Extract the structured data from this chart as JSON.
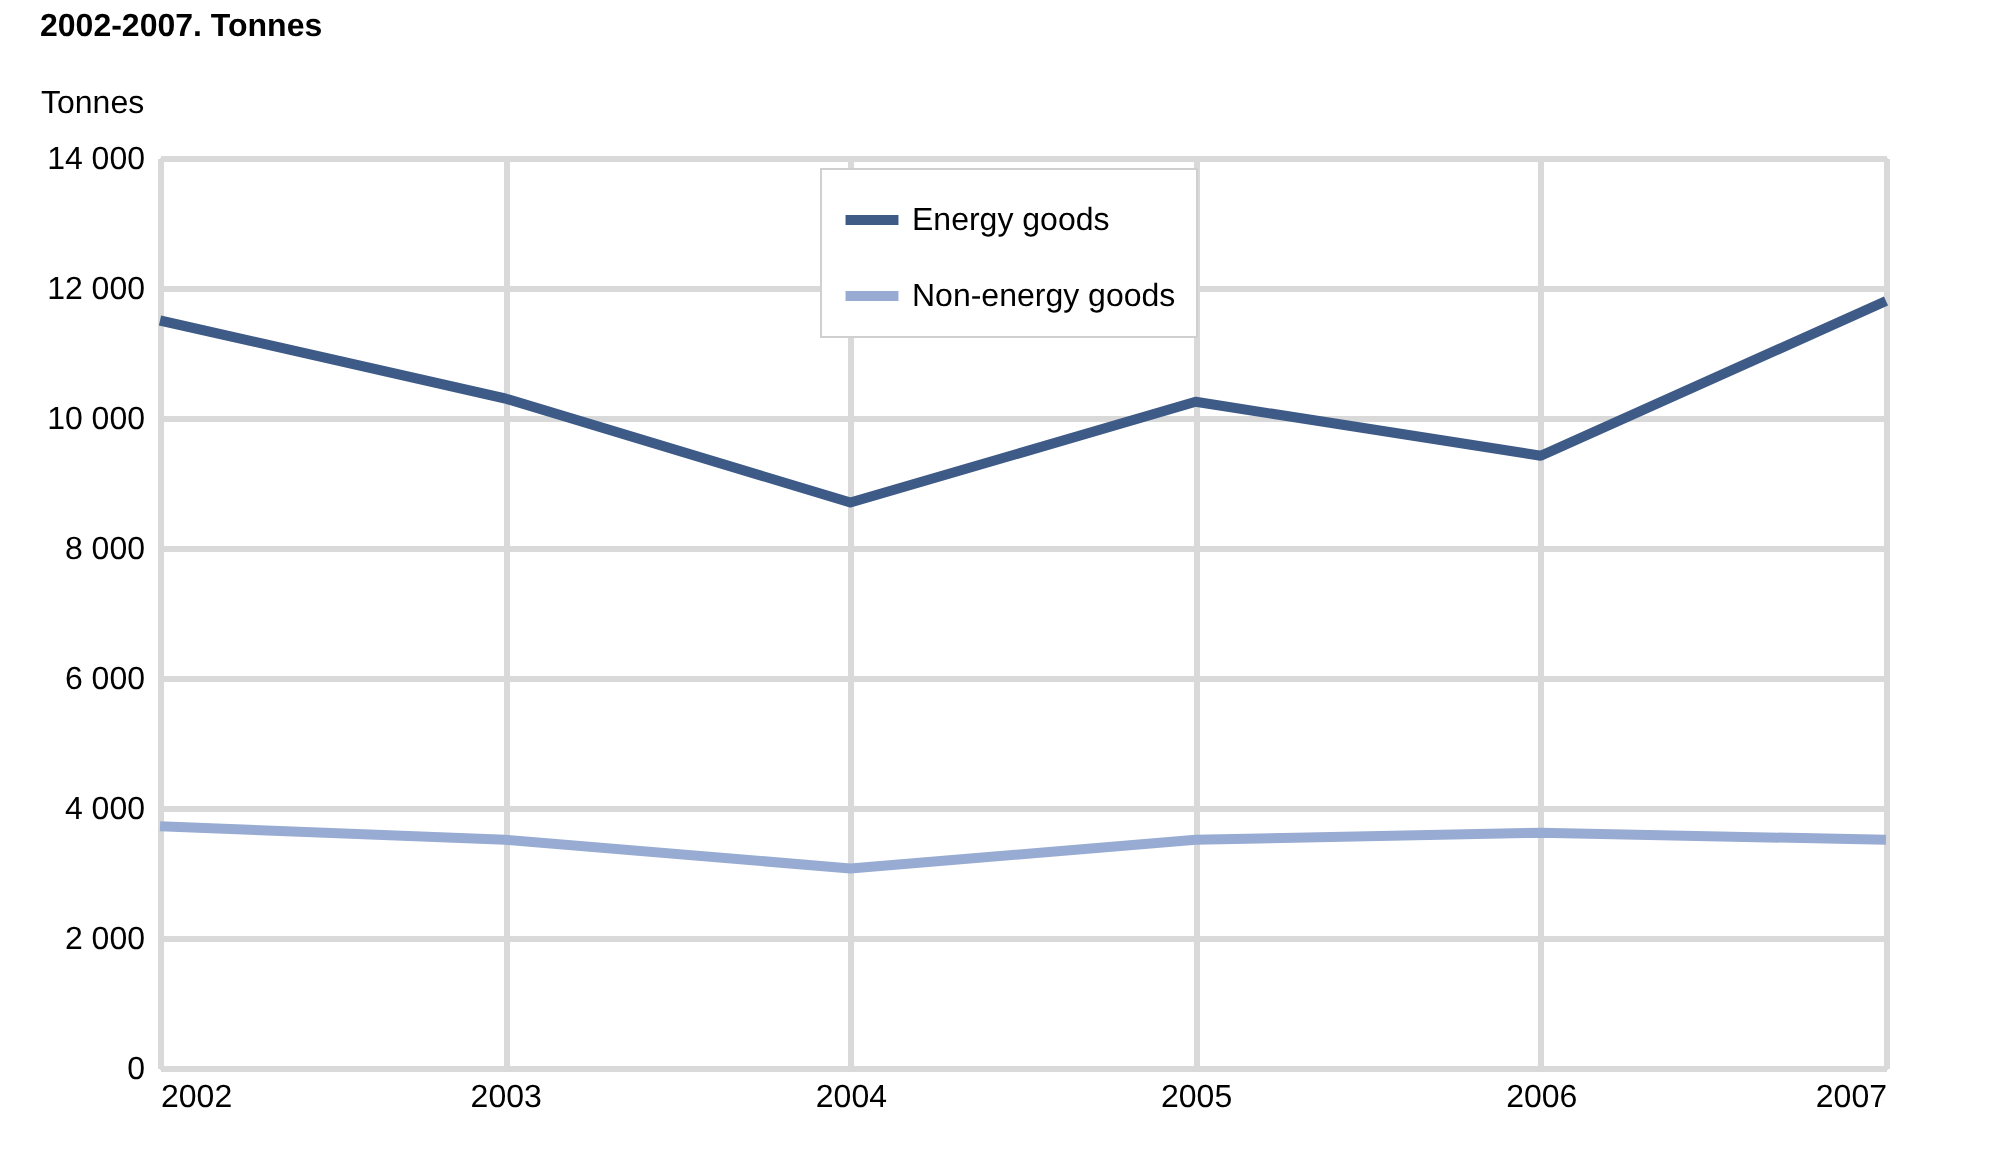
{
  "chart_data": {
    "type": "line",
    "title": "2002-2007. Tonnes",
    "ylabel": "Tonnes",
    "x": [
      2002,
      2003,
      2004,
      2005,
      2006,
      2007
    ],
    "series": [
      {
        "name": "Energy goods",
        "color": "#3e5a86",
        "values": [
          11500,
          10300,
          8700,
          10250,
          9420,
          11800
        ]
      },
      {
        "name": "Non-energy goods",
        "color": "#98abd2",
        "values": [
          3720,
          3510,
          3070,
          3510,
          3620,
          3510
        ]
      }
    ],
    "xlim": [
      2002,
      2007
    ],
    "xticks": [
      2002,
      2003,
      2004,
      2005,
      2006,
      2007
    ],
    "ylim": [
      0,
      14000
    ],
    "yticks": [
      0,
      2000,
      4000,
      6000,
      8000,
      10000,
      12000,
      14000
    ],
    "grid": true,
    "legend": "top",
    "marker": "none",
    "line_style": "solid"
  }
}
